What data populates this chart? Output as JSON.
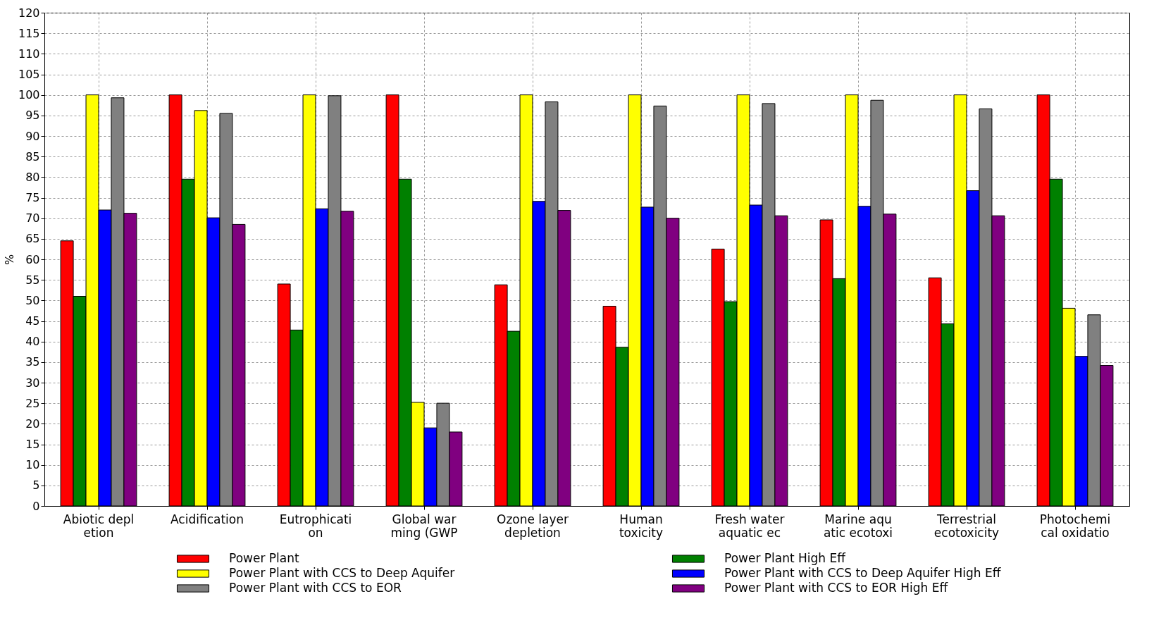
{
  "chart_data": {
    "type": "bar",
    "ylabel": "%",
    "categories": [
      "Abiotic depl\netion",
      "Acidification",
      "Eutrophicati\non",
      "Global war\nming (GWP",
      "Ozone layer\ndepletion",
      "Human\ntoxicity",
      "Fresh water\naquatic ec",
      "Marine aqu\natic ecotoxi",
      "Terrestrial\necotoxicity",
      "Photochemi\ncal oxidatio"
    ],
    "series": [
      {
        "name": "Power Plant",
        "color": "#ff0000",
        "values": [
          64.5,
          100,
          54,
          100,
          53.8,
          48.6,
          62.5,
          69.6,
          55.5,
          100
        ]
      },
      {
        "name": "Power Plant High Eff",
        "color": "#008000",
        "values": [
          51,
          79.5,
          42.8,
          79.5,
          42.5,
          38.6,
          49.7,
          55.3,
          44.3,
          79.5
        ]
      },
      {
        "name": "Power Plant with CCS to Deep Aquifer",
        "color": "#ffff00",
        "values": [
          100,
          96.2,
          100,
          25.2,
          100,
          100,
          100,
          100,
          100,
          48.1
        ]
      },
      {
        "name": "Power Plant with CCS to Deep Aquifer High Eff",
        "color": "#0000ff",
        "values": [
          72,
          70.1,
          72.3,
          19,
          74.1,
          72.7,
          73.2,
          72.9,
          76.7,
          36.4
        ]
      },
      {
        "name": "Power Plant with CCS to EOR",
        "color": "#808080",
        "values": [
          99.3,
          95.5,
          99.8,
          25,
          98.3,
          97.3,
          97.9,
          98.7,
          96.6,
          46.5
        ]
      },
      {
        "name": "Power Plant with CCS to EOR High Eff",
        "color": "#800080",
        "values": [
          71.2,
          68.5,
          71.7,
          18,
          71.9,
          70,
          70.6,
          71,
          70.6,
          34.2
        ]
      }
    ],
    "ylim": [
      0,
      120
    ],
    "yticks": [
      0,
      5,
      10,
      15,
      20,
      25,
      30,
      35,
      40,
      45,
      50,
      55,
      60,
      65,
      70,
      75,
      80,
      85,
      90,
      95,
      100,
      105,
      110,
      115,
      120
    ],
    "grid": true,
    "legend": "bottom"
  }
}
